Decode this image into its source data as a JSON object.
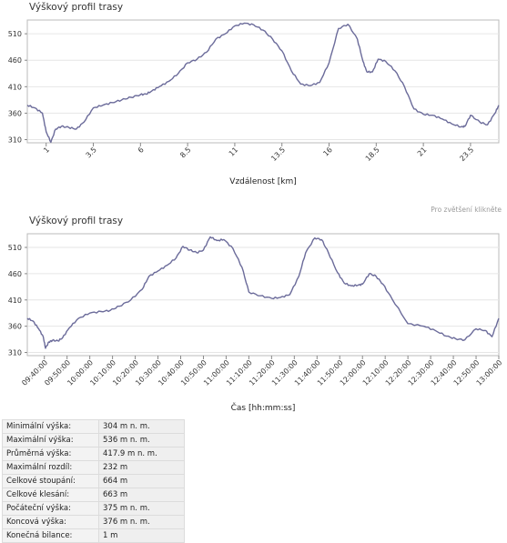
{
  "chart_data": [
    {
      "type": "line",
      "title": "Výškový profil trasy",
      "xlabel": "Vzdálenost [km]",
      "ylabel": "",
      "xlim": [
        0,
        25
      ],
      "ylim": [
        304,
        536
      ],
      "yticks": [
        "510",
        "460",
        "410",
        "360",
        "310"
      ],
      "xticks": [
        "1",
        "3.5",
        "6",
        "8.5",
        "11",
        "13.5",
        "16",
        "18.5",
        "21",
        "23.5"
      ],
      "series": [
        {
          "x": [
            0,
            0.4,
            0.8,
            1.0,
            1.25,
            1.5,
            1.8,
            2.2,
            2.6,
            3.0,
            3.5,
            4.0,
            4.5,
            5.0,
            5.5,
            6.0,
            6.3,
            6.6,
            7.0,
            7.5,
            8.0,
            8.5,
            9.0,
            9.5,
            10.0,
            10.5,
            11.0,
            11.5,
            12.0,
            12.5,
            13.0,
            13.5,
            14.0,
            14.5,
            15.0,
            15.5,
            16.0,
            16.5,
            17.0,
            17.5,
            17.8,
            18.0,
            18.3,
            18.6,
            19.0,
            19.5,
            20.0,
            20.5,
            21.0,
            21.5,
            22.0,
            22.5,
            23.0,
            23.2,
            23.5,
            24.0,
            24.4,
            24.8,
            25.0
          ],
          "y": [
            375,
            370,
            360,
            325,
            305,
            330,
            335,
            333,
            330,
            343,
            370,
            375,
            380,
            385,
            390,
            395,
            396,
            402,
            410,
            420,
            435,
            455,
            462,
            475,
            500,
            510,
            525,
            530,
            527,
            517,
            500,
            478,
            440,
            415,
            412,
            418,
            455,
            520,
            528,
            500,
            458,
            438,
            438,
            462,
            458,
            440,
            410,
            368,
            358,
            356,
            349,
            340,
            334,
            335,
            356,
            343,
            338,
            360,
            375
          ]
        }
      ]
    },
    {
      "type": "line",
      "title": "Výškový profil trasy",
      "xlabel": "Čas  [hh:mm:ss]",
      "ylabel": "",
      "xlim": [
        "09:32:30",
        "13:00:00"
      ],
      "ylim": [
        304,
        536
      ],
      "yticks": [
        "510",
        "460",
        "410",
        "360",
        "310"
      ],
      "xticks": [
        "09:40:00",
        "09:50:00",
        "10:00:00",
        "10:10:00",
        "10:20:00",
        "10:30:00",
        "10:40:00",
        "10:50:00",
        "11:00:00",
        "11:10:00",
        "11:20:00",
        "11:30:00",
        "11:40:00",
        "11:50:00",
        "12:00:00",
        "12:10:00",
        "12:20:00",
        "12:30:00",
        "12:40:00",
        "12:50:00",
        "13:00:00"
      ],
      "series": [
        {
          "x": [
            "09:32:30",
            "09:35:00",
            "09:37:30",
            "09:39:30",
            "09:40:30",
            "09:42:00",
            "09:43:30",
            "09:46:00",
            "09:48:00",
            "09:51:00",
            "09:55:00",
            "10:00:00",
            "10:05:00",
            "10:09:00",
            "10:13:00",
            "10:18:00",
            "10:23:00",
            "10:26:00",
            "10:30:00",
            "10:34:00",
            "10:38:00",
            "10:41:00",
            "10:44:00",
            "10:47:00",
            "10:50:00",
            "10:53:00",
            "10:56:00",
            "10:59:00",
            "11:03:00",
            "11:07:00",
            "11:10:00",
            "11:15:00",
            "11:20:00",
            "11:24:00",
            "11:28:00",
            "11:32:00",
            "11:35:00",
            "11:39:00",
            "11:42:00",
            "11:45:00",
            "11:49:00",
            "11:52:00",
            "11:55:00",
            "11:58:00",
            "12:00:00",
            "12:03:00",
            "12:06:00",
            "12:09:00",
            "12:13:00",
            "12:20:00",
            "12:27:00",
            "12:32:00",
            "12:37:00",
            "12:41:00",
            "12:45:00",
            "12:50:00",
            "12:54:00",
            "12:57:00",
            "13:00:00"
          ],
          "y": [
            375,
            370,
            355,
            340,
            318,
            330,
            333,
            332,
            338,
            357,
            375,
            385,
            388,
            390,
            398,
            410,
            430,
            455,
            465,
            476,
            490,
            512,
            505,
            500,
            505,
            530,
            523,
            525,
            508,
            472,
            425,
            418,
            413,
            415,
            420,
            455,
            500,
            528,
            525,
            500,
            462,
            442,
            437,
            438,
            440,
            460,
            455,
            440,
            412,
            365,
            360,
            352,
            341,
            336,
            334,
            355,
            352,
            340,
            375
          ]
        }
      ]
    }
  ],
  "stats": [
    {
      "label": "Minimální výška:",
      "value": "304 m n. m."
    },
    {
      "label": "Maximální výška:",
      "value": "536 m n. m."
    },
    {
      "label": "Průměrná výška:",
      "value": "417.9 m n. m."
    },
    {
      "label": "Maximální rozdíl:",
      "value": "232 m"
    },
    {
      "label": "Celkové stoupání:",
      "value": "664 m"
    },
    {
      "label": "Celkové klesání:",
      "value": "663 m"
    },
    {
      "label": "Počáteční výška:",
      "value": "375 m n. m."
    },
    {
      "label": "Koncová výška:",
      "value": "376 m n. m."
    },
    {
      "label": "Konečná bilance:",
      "value": "1 m"
    }
  ],
  "hint": "Pro zvětšení klikněte",
  "colors": {
    "line": "#6b6b9a",
    "axis": "#bbbbbb",
    "grid": "#e6e6e6"
  }
}
